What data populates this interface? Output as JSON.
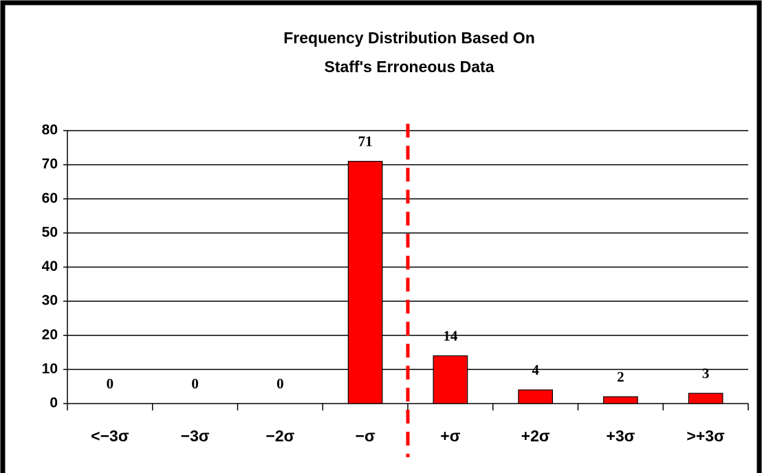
{
  "chart_data": {
    "type": "bar",
    "title": [
      "Frequency Distribution Based On",
      "Staff's Erroneous Data"
    ],
    "categories": [
      "<−3σ",
      "−3σ",
      "−2σ",
      "−σ",
      "+σ",
      "+2σ",
      "+3σ",
      ">+3σ"
    ],
    "values": [
      0,
      0,
      0,
      71,
      14,
      4,
      2,
      3
    ],
    "color": "#ff0000",
    "ylim": [
      0,
      80
    ],
    "yticks": [
      0,
      10,
      20,
      30,
      40,
      50,
      60,
      70,
      80
    ],
    "grid": true
  }
}
